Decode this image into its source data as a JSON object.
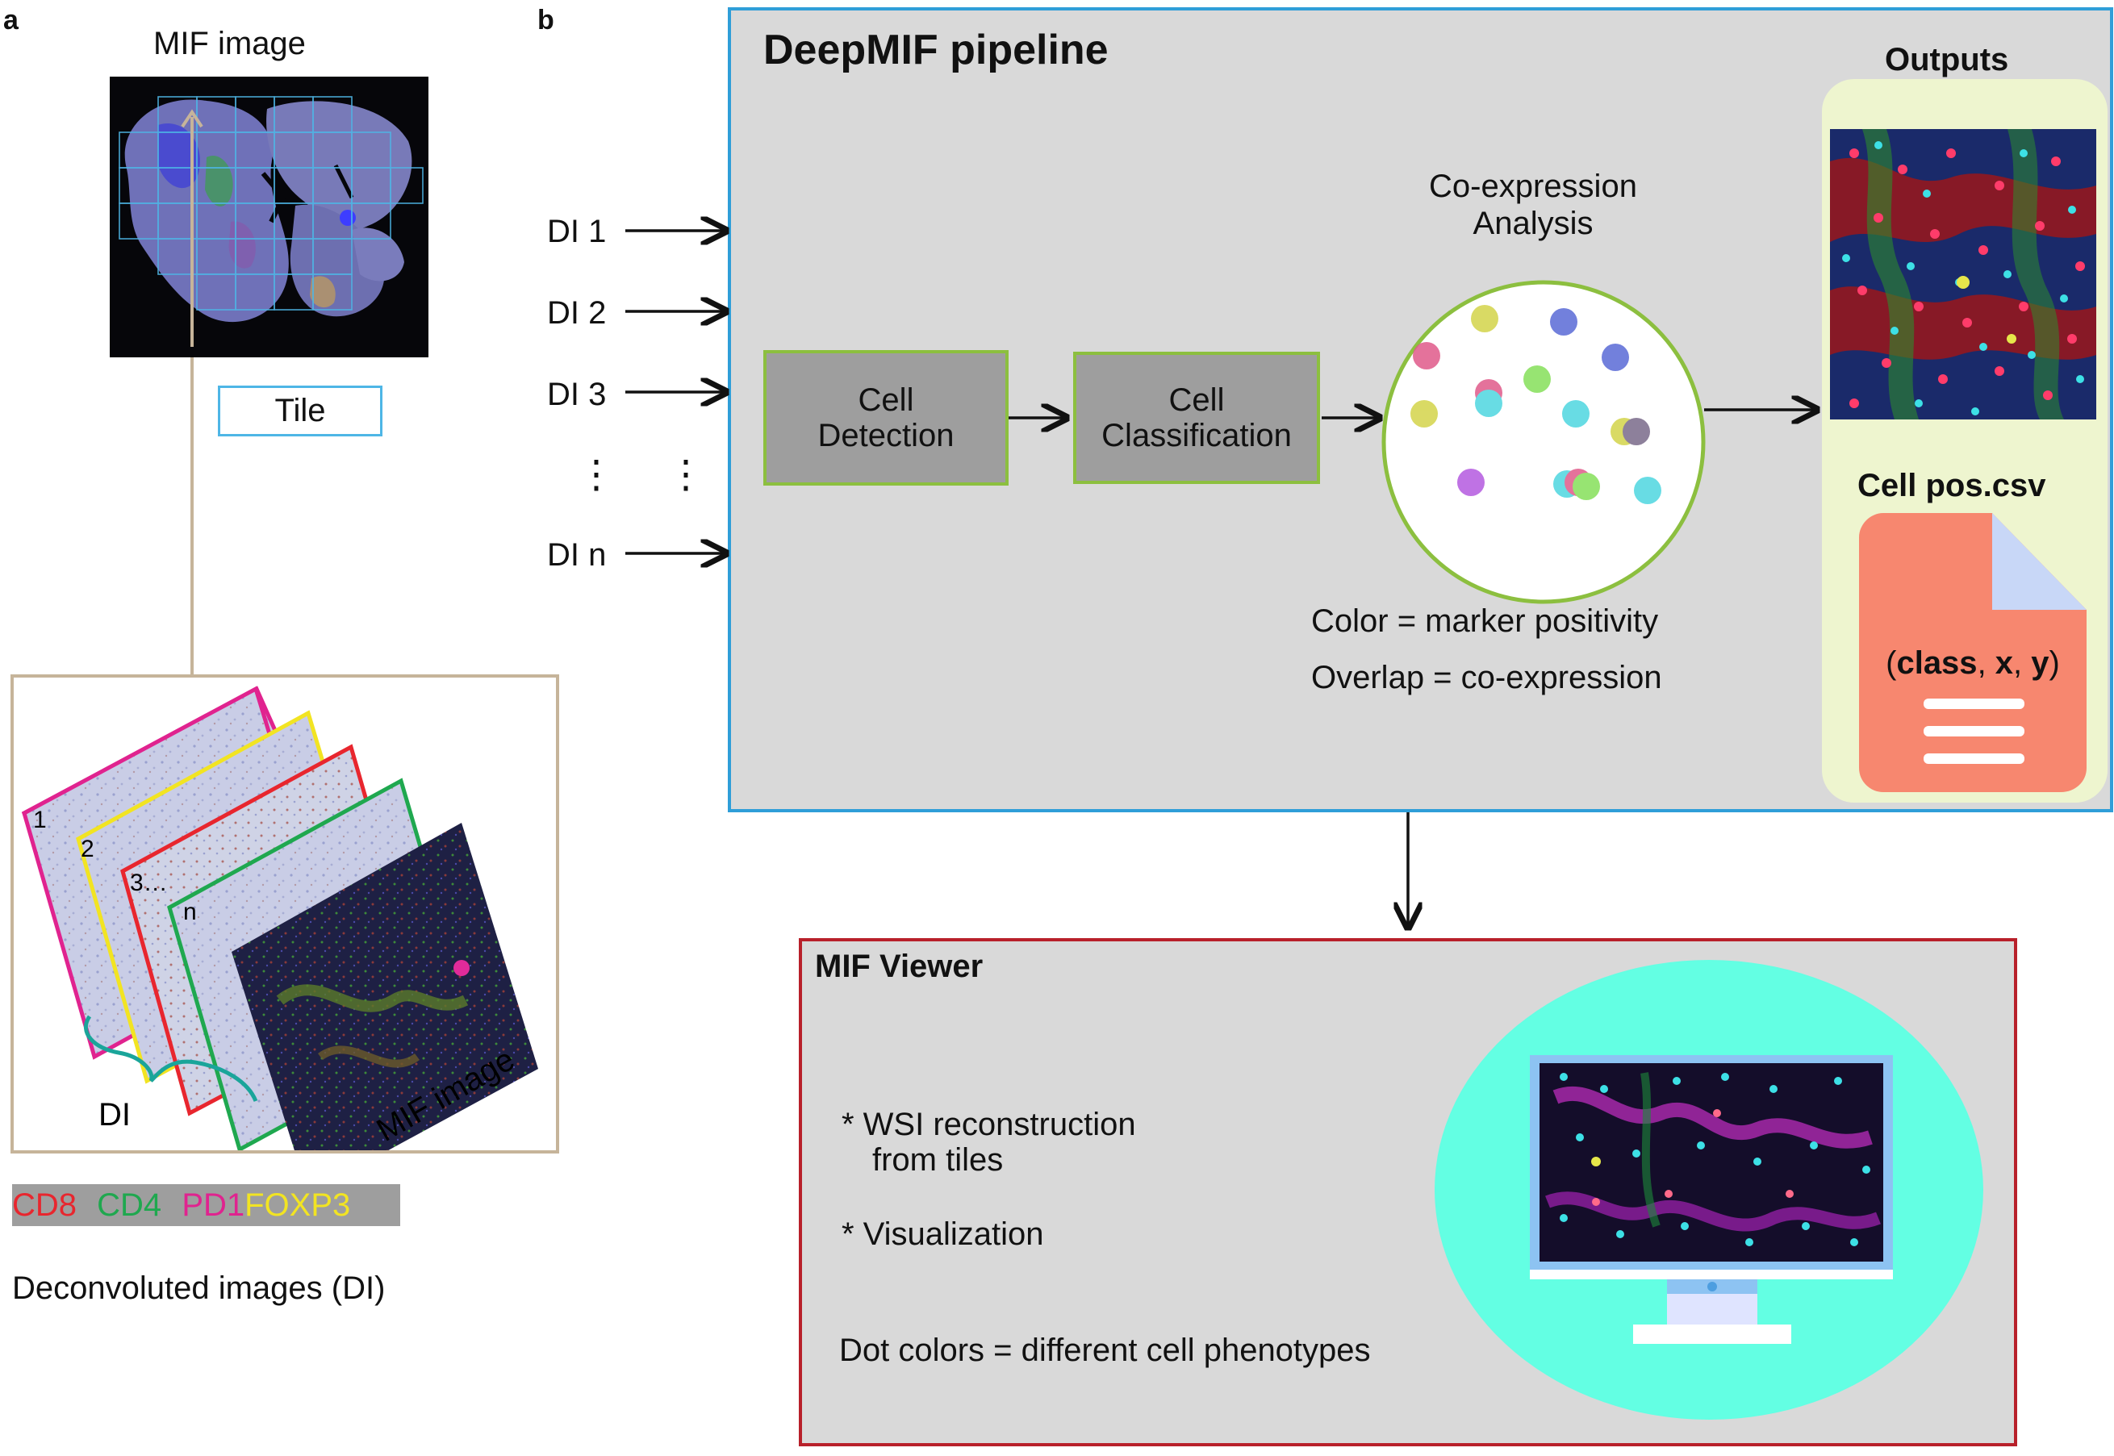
{
  "panel_a": {
    "letter": "a",
    "mif_title": "MIF image",
    "tile_label": "Tile",
    "stack_numbers": [
      "1",
      "2",
      "3…",
      "n"
    ],
    "di_label": "DI",
    "mif_image_label": "MIF image",
    "markers": [
      {
        "name": "CD8",
        "color": "#e8262e"
      },
      {
        "name": "CD4",
        "color": "#1fa84f"
      },
      {
        "name": "PD1",
        "color": "#e0238f"
      },
      {
        "name": "FOXP3",
        "color": "#f2e422"
      }
    ],
    "caption": "Deconvoluted images (DI)"
  },
  "panel_b": {
    "letter": "b",
    "pipeline_title": "DeepMIF pipeline",
    "inputs": [
      "DI 1",
      "DI 2",
      "DI 3",
      "DI n"
    ],
    "input_ellipsis": "⋮",
    "cell_detection": [
      "Cell",
      "Detection"
    ],
    "cell_classification": [
      "Cell",
      "Classification"
    ],
    "coexpression_title": [
      "Co-expression",
      "Analysis"
    ],
    "legend_lines": [
      "Color = marker positivity",
      "Overlap = co-expression"
    ],
    "outputs_title": "Outputs",
    "csv_title": "Cell pos.csv",
    "csv_fields": {
      "open": "(",
      "class": "class",
      "sep1": ", ",
      "x": "x",
      "sep2": ", ",
      "y": "y",
      "close": ")"
    }
  },
  "viewer": {
    "title": "MIF Viewer",
    "bullet1": [
      "* WSI reconstruction",
      "from tiles"
    ],
    "bullet2": "* Visualization",
    "dot_note": "Dot colors = different cell phenotypes"
  },
  "colors": {
    "pipeline_border": "#2f9ed8",
    "viewer_border": "#b8202a",
    "process_border": "#8cbf3f",
    "panel_bg": "#d9d9d9",
    "outputs_bg": "#eef5cf",
    "csv_file": "#f7876f",
    "csv_fold": "#c8d7f7",
    "viewer_oval": "#63ffe3"
  }
}
